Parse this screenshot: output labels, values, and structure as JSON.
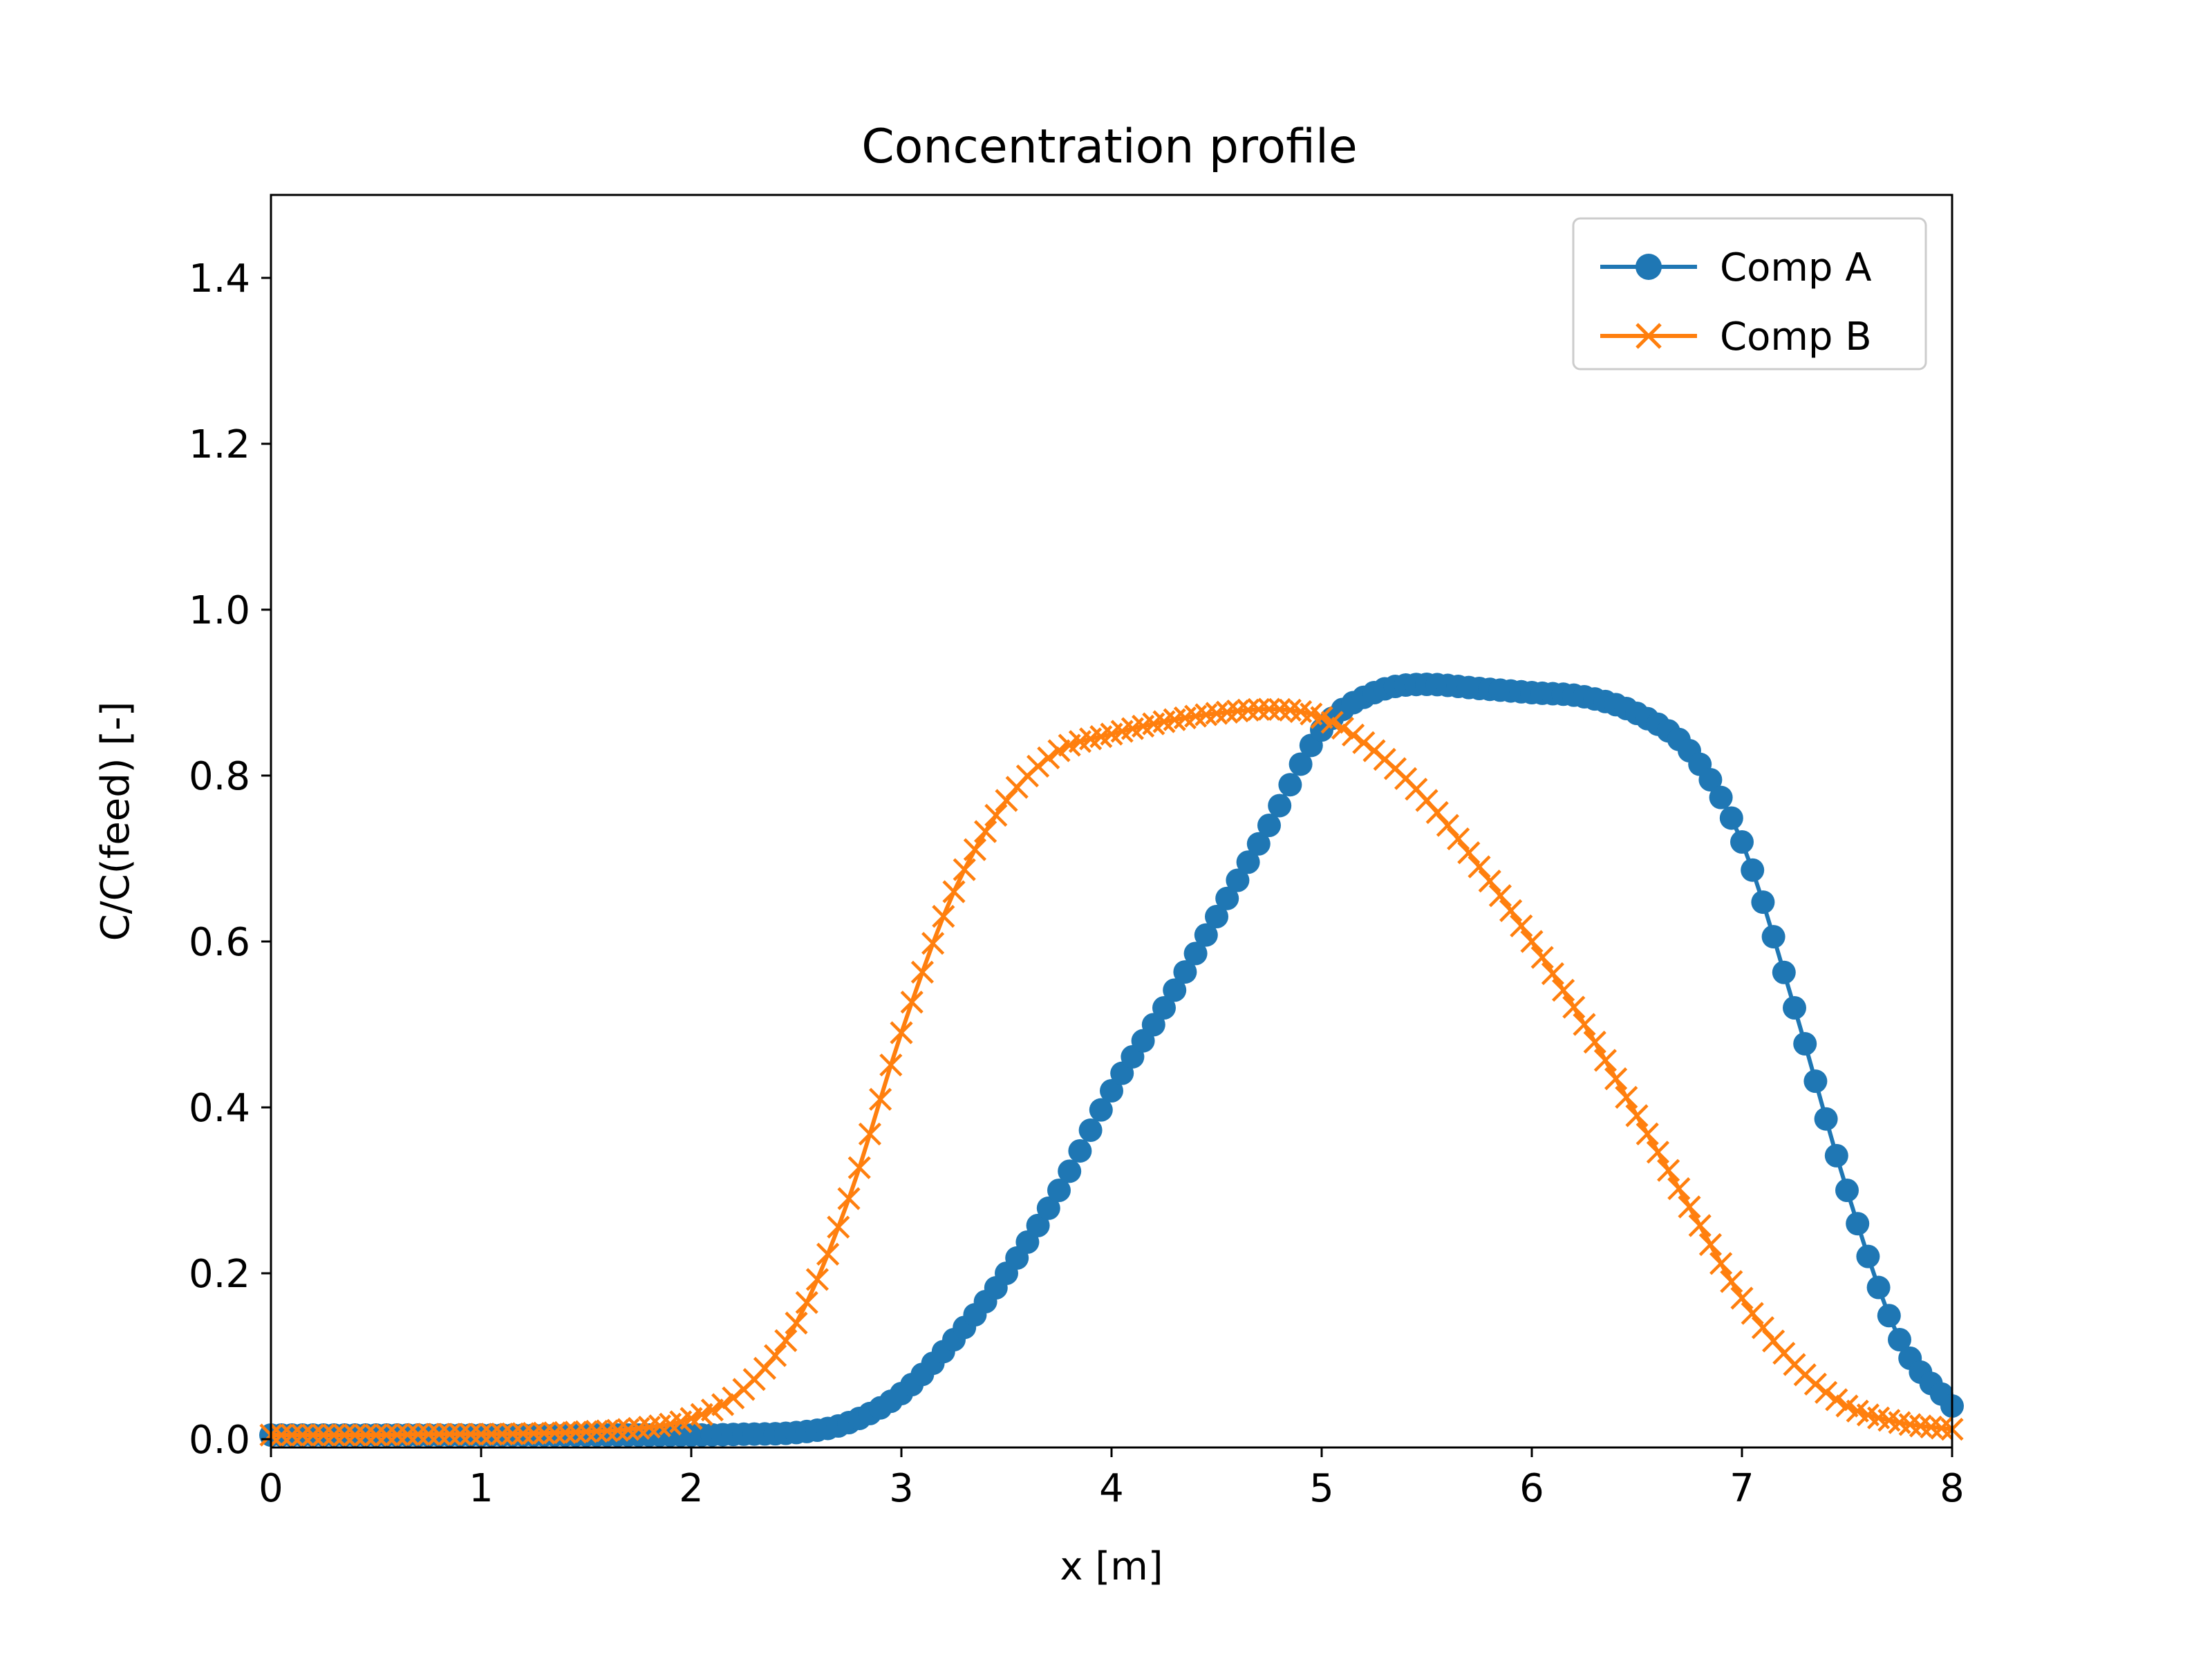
{
  "chart_data": {
    "type": "line",
    "title": "Concentration profile",
    "xlabel": "x [m]",
    "ylabel": "C/C(feed) [-]",
    "xlim": [
      0,
      8
    ],
    "ylim": [
      -0.01,
      1.5
    ],
    "xticks": [
      0,
      1,
      2,
      3,
      4,
      5,
      6,
      7,
      8
    ],
    "xtick_labels": [
      "0",
      "1",
      "2",
      "3",
      "4",
      "5",
      "6",
      "7",
      "8"
    ],
    "yticks": [
      0.0,
      0.2,
      0.4,
      0.6,
      0.8,
      1.0,
      1.2,
      1.4
    ],
    "ytick_labels": [
      "0.0",
      "0.2",
      "0.4",
      "0.6",
      "0.8",
      "1.0",
      "1.2",
      "1.4"
    ],
    "grid": false,
    "legend_position": "top-right",
    "series": [
      {
        "name": "Comp A",
        "color": "#1f77b4",
        "marker": "circle",
        "x": [
          0,
          0.25,
          0.5,
          0.75,
          1.0,
          1.25,
          1.5,
          1.75,
          2.0,
          2.25,
          2.5,
          2.75,
          3.0,
          3.25,
          3.5,
          3.75,
          4.0,
          4.25,
          4.5,
          4.75,
          5.0,
          5.25,
          5.5,
          5.75,
          6.0,
          6.25,
          6.5,
          6.75,
          7.0,
          7.25,
          7.5,
          7.75,
          8.0
        ],
        "y": [
          0.005,
          0.005,
          0.005,
          0.005,
          0.005,
          0.005,
          0.005,
          0.005,
          0.005,
          0.006,
          0.008,
          0.02,
          0.055,
          0.12,
          0.2,
          0.3,
          0.42,
          0.52,
          0.63,
          0.74,
          0.855,
          0.9,
          0.91,
          0.905,
          0.9,
          0.895,
          0.875,
          0.83,
          0.72,
          0.52,
          0.3,
          0.12,
          0.04
        ]
      },
      {
        "name": "Comp B",
        "color": "#ff7f0e",
        "marker": "x",
        "x": [
          0,
          0.25,
          0.5,
          0.75,
          1.0,
          1.25,
          1.5,
          1.75,
          2.0,
          2.25,
          2.5,
          2.75,
          3.0,
          3.25,
          3.5,
          3.75,
          4.0,
          4.25,
          4.5,
          4.75,
          5.0,
          5.25,
          5.5,
          5.75,
          6.0,
          6.25,
          6.5,
          6.75,
          7.0,
          7.25,
          7.5,
          7.75,
          8.0
        ],
        "y": [
          0.005,
          0.005,
          0.005,
          0.006,
          0.006,
          0.007,
          0.009,
          0.013,
          0.025,
          0.06,
          0.14,
          0.29,
          0.49,
          0.66,
          0.77,
          0.83,
          0.85,
          0.865,
          0.875,
          0.88,
          0.87,
          0.83,
          0.77,
          0.69,
          0.6,
          0.5,
          0.39,
          0.28,
          0.17,
          0.09,
          0.04,
          0.02,
          0.012
        ]
      }
    ]
  }
}
